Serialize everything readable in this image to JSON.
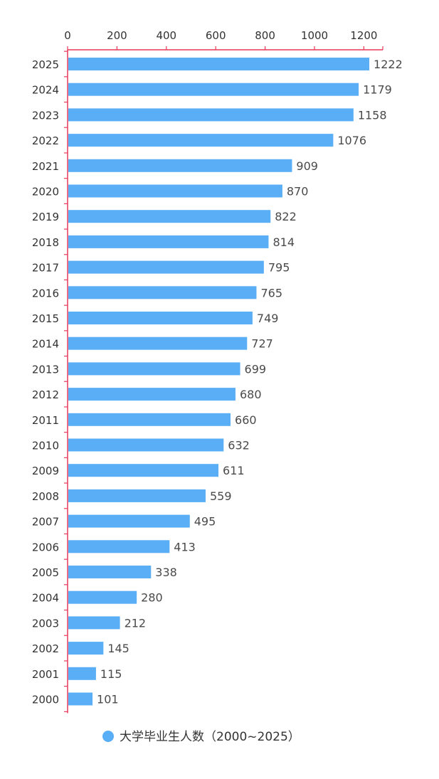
{
  "chart_data": {
    "type": "bar",
    "orientation": "horizontal",
    "categories": [
      "2025",
      "2024",
      "2023",
      "2022",
      "2021",
      "2020",
      "2019",
      "2018",
      "2017",
      "2016",
      "2015",
      "2014",
      "2013",
      "2012",
      "2011",
      "2010",
      "2009",
      "2008",
      "2007",
      "2006",
      "2005",
      "2004",
      "2003",
      "2002",
      "2001",
      "2000"
    ],
    "series": [
      {
        "name": "大学毕业生人数（2000~2025）",
        "values": [
          1222,
          1179,
          1158,
          1076,
          909,
          870,
          822,
          814,
          795,
          765,
          749,
          727,
          699,
          680,
          660,
          632,
          611,
          559,
          495,
          413,
          338,
          280,
          212,
          145,
          115,
          101
        ]
      }
    ],
    "x_ticks": [
      "0",
      "200",
      "400",
      "600",
      "800",
      "1000",
      "1200"
    ],
    "xlim": [
      0,
      1280
    ],
    "title": "",
    "xlabel": "",
    "ylabel": "",
    "grid": false,
    "x_axis_position": "top",
    "legend_position": "bottom-center",
    "colors": {
      "bar": "#5aaef5",
      "axis": "#e8385a",
      "text": "#333333"
    }
  }
}
